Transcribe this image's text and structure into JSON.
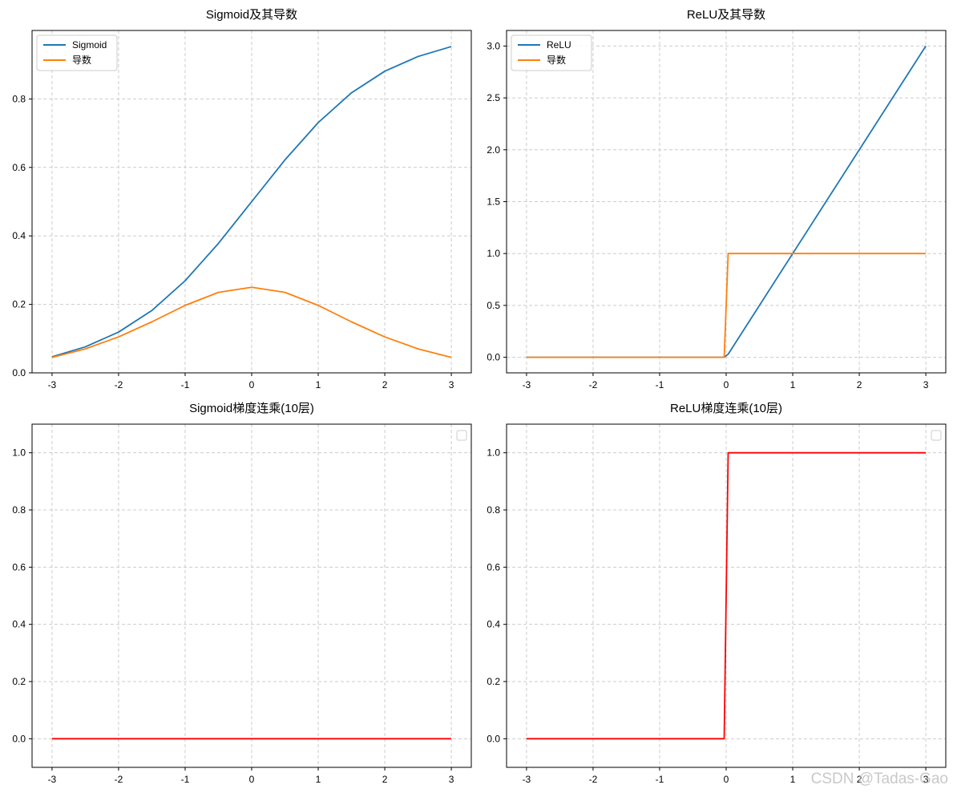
{
  "watermark": "CSDN @Tadas-Gao",
  "chart_data": [
    {
      "type": "line",
      "title": "Sigmoid及其导数",
      "xlabel": "",
      "ylabel": "",
      "xlim": [
        -3.3,
        3.3
      ],
      "ylim": [
        0,
        1.0
      ],
      "xticks": [
        -3,
        -2,
        -1,
        0,
        1,
        2,
        3
      ],
      "xtick_labels": [
        "-3",
        "-2",
        "-1",
        "0",
        "1",
        "2",
        "3"
      ],
      "yticks": [
        0,
        0.2,
        0.4,
        0.6,
        0.8
      ],
      "ytick_labels": [
        "0.0",
        "0.2",
        "0.4",
        "0.6",
        "0.8"
      ],
      "grid": true,
      "legend_position": "top-left",
      "series": [
        {
          "name": "Sigmoid",
          "color": "#1f77b4",
          "x": [
            -3,
            -2.5,
            -2,
            -1.5,
            -1,
            -0.5,
            0,
            0.5,
            1,
            1.5,
            2,
            2.5,
            3
          ],
          "y": [
            0.047,
            0.076,
            0.119,
            0.182,
            0.269,
            0.378,
            0.5,
            0.622,
            0.731,
            0.818,
            0.881,
            0.924,
            0.953
          ]
        },
        {
          "name": "导数",
          "color": "#ff7f0e",
          "x": [
            -3,
            -2.5,
            -2,
            -1.5,
            -1,
            -0.5,
            0,
            0.5,
            1,
            1.5,
            2,
            2.5,
            3
          ],
          "y": [
            0.045,
            0.07,
            0.105,
            0.149,
            0.197,
            0.235,
            0.25,
            0.235,
            0.197,
            0.149,
            0.105,
            0.07,
            0.045
          ]
        }
      ]
    },
    {
      "type": "line",
      "title": "ReLU及其导数",
      "xlabel": "",
      "ylabel": "",
      "xlim": [
        -3.3,
        3.3
      ],
      "ylim": [
        -0.15,
        3.15
      ],
      "xticks": [
        -3,
        -2,
        -1,
        0,
        1,
        2,
        3
      ],
      "xtick_labels": [
        "-3",
        "-2",
        "-1",
        "0",
        "1",
        "2",
        "3"
      ],
      "yticks": [
        0,
        0.5,
        1,
        1.5,
        2,
        2.5,
        3
      ],
      "ytick_labels": [
        "0.0",
        "0.5",
        "1.0",
        "1.5",
        "2.0",
        "2.5",
        "3.0"
      ],
      "grid": true,
      "legend_position": "top-left",
      "series": [
        {
          "name": "ReLU",
          "color": "#1f77b4",
          "x": [
            -3,
            -0.03,
            0.03,
            3
          ],
          "y": [
            0,
            0,
            0.03,
            3
          ]
        },
        {
          "name": "导数",
          "color": "#ff7f0e",
          "x": [
            -3,
            -0.03,
            0.03,
            3
          ],
          "y": [
            0,
            0,
            1,
            1
          ]
        }
      ]
    },
    {
      "type": "line",
      "title": "Sigmoid梯度连乘(10层)",
      "xlabel": "",
      "ylabel": "",
      "xlim": [
        -3.3,
        3.3
      ],
      "ylim": [
        -0.1,
        1.1
      ],
      "xticks": [
        -3,
        -2,
        -1,
        0,
        1,
        2,
        3
      ],
      "xtick_labels": [
        "-3",
        "-2",
        "-1",
        "0",
        "1",
        "2",
        "3"
      ],
      "yticks": [
        0,
        0.2,
        0.4,
        0.6,
        0.8,
        1
      ],
      "ytick_labels": [
        "0.0",
        "0.2",
        "0.4",
        "0.6",
        "0.8",
        "1.0"
      ],
      "grid": true,
      "legend_position": "top-right",
      "series": [
        {
          "color": "#ff0000",
          "x": [
            -3,
            3
          ],
          "y": [
            0,
            0
          ]
        }
      ]
    },
    {
      "type": "line",
      "title": "ReLU梯度连乘(10层)",
      "xlabel": "",
      "ylabel": "",
      "xlim": [
        -3.3,
        3.3
      ],
      "ylim": [
        -0.1,
        1.1
      ],
      "xticks": [
        -3,
        -2,
        -1,
        0,
        1,
        2,
        3
      ],
      "xtick_labels": [
        "-3",
        "-2",
        "-1",
        "0",
        "1",
        "2",
        "3"
      ],
      "yticks": [
        0,
        0.2,
        0.4,
        0.6,
        0.8,
        1
      ],
      "ytick_labels": [
        "0.0",
        "0.2",
        "0.4",
        "0.6",
        "0.8",
        "1.0"
      ],
      "grid": true,
      "legend_position": "top-right",
      "series": [
        {
          "color": "#ff0000",
          "x": [
            -3,
            -0.03,
            0.03,
            3
          ],
          "y": [
            0,
            0,
            1,
            1
          ]
        }
      ]
    }
  ]
}
